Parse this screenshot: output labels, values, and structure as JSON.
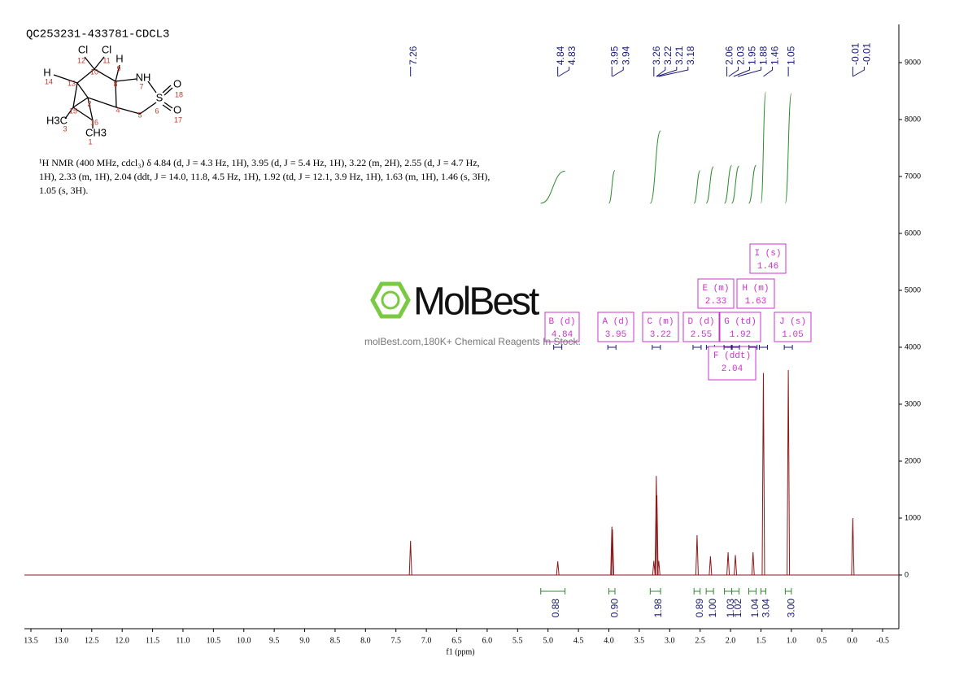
{
  "chart_data": {
    "type": "spectrum",
    "title": "QC253231-433781-CDCL3",
    "x_label": "f1 (ppm)",
    "xlim": [
      13.607,
      -0.767
    ],
    "xticks": [
      13.5,
      {
        "value": 13,
        "label": "13.0"
      },
      12.5,
      {
        "value": 12,
        "label": "12.0"
      },
      11.5,
      {
        "value": 11,
        "label": "11.0"
      },
      10.5,
      {
        "value": 10,
        "label": "10.0"
      },
      9.5,
      {
        "value": 9,
        "label": "9.0"
      },
      8.5,
      {
        "value": 8,
        "label": "8.0"
      },
      7.5,
      {
        "value": 7,
        "label": "7.0"
      },
      6.5,
      {
        "value": 6,
        "label": "6.0"
      },
      5.5,
      {
        "value": 5,
        "label": "5.0"
      },
      4.5,
      {
        "value": 4,
        "label": "4.0"
      },
      3.5,
      {
        "value": 3,
        "label": "3.0"
      },
      2.5,
      {
        "value": 2,
        "label": "2.0"
      },
      1.5,
      {
        "value": 1,
        "label": "1.0"
      },
      0.5,
      {
        "value": 0,
        "label": "0.0"
      },
      -0.5
    ],
    "ylim": [
      -943,
      9671
    ],
    "yticks": [
      0,
      1000,
      2000,
      3000,
      4000,
      5000,
      6000,
      7000,
      8000,
      9000
    ],
    "peaks": {
      "color": "#8b1a1a",
      "x": [
        7.26,
        4.84,
        3.95,
        3.94,
        3.26,
        3.22,
        3.21,
        3.18,
        2.55,
        2.33,
        2.04,
        1.92,
        1.63,
        1.46,
        1.05,
        -0.01
      ],
      "values": [
        600,
        240,
        850,
        800,
        250,
        1740,
        1400,
        250,
        700,
        330,
        400,
        350,
        400,
        3550,
        3600,
        1000
      ]
    },
    "peak_labels": {
      "color": "#1a1a7a",
      "values": [
        7.26,
        4.84,
        4.83,
        3.95,
        3.94,
        3.26,
        3.22,
        3.21,
        3.18,
        2.06,
        2.03,
        1.95,
        1.88,
        1.46,
        1.05,
        -0.01,
        -0.01
      ]
    },
    "multiplets": {
      "color": "#cc33cc",
      "items": [
        {
          "label": "B (d)",
          "value": 4.84
        },
        {
          "label": "A (d)",
          "value": 3.95
        },
        {
          "label": "C (m)",
          "value": 3.22
        },
        {
          "label": "D (d)",
          "value": 2.55
        },
        {
          "label": "E (m)",
          "value": 2.33
        },
        {
          "label": "F (ddt)",
          "value": 2.04
        },
        {
          "label": "G (td)",
          "value": 1.92
        },
        {
          "label": "H (m)",
          "value": 1.63
        },
        {
          "label": "I (s)",
          "value": 1.46
        },
        {
          "label": "J (s)",
          "value": 1.05
        }
      ]
    },
    "integrals": {
      "color": "#2e8b2e",
      "values": [
        0.88,
        0.9,
        1.98,
        0.89,
        1.0,
        1.03,
        1.02,
        1.04,
        3.04,
        3.0
      ],
      "value_labels": [
        "0.88",
        "0.90",
        "1.98",
        "0.89",
        "1.00",
        "1.03",
        "1.02",
        "1.04",
        "3.04",
        "3.00"
      ],
      "from": [
        5.12,
        4.0,
        3.32,
        2.6,
        2.4,
        2.1,
        1.98,
        1.7,
        1.5,
        1.1
      ],
      "to": [
        4.72,
        3.9,
        3.15,
        2.5,
        2.28,
        1.98,
        1.86,
        1.58,
        1.42,
        1.0
      ]
    },
    "description": "¹H NMR (400 MHz, cdcl₃) δ 4.84 (d, J = 4.3 Hz, 1H), 3.95 (d, J = 5.4 Hz, 1H), 3.22 (m, 2H), 2.55 (d, J = 4.7 Hz, 1H), 2.33 (m, 1H), 2.04 (ddt, J = 14.0, 11.8, 4.5 Hz, 1H), 1.92 (td, J = 12.1, 3.9 Hz, 1H), 1.63 (m, 1H), 1.46 (s, 3H), 1.05 (s, 3H).",
    "watermark": {
      "brand": "MolBest",
      "tagline": "molBest.com,180K+ Chemical Reagents In Stock."
    },
    "structure": {
      "atoms": [
        "Cl",
        "Cl",
        "H",
        "H",
        "NH",
        "S",
        "O",
        "O",
        "H3C",
        "CH3"
      ],
      "locants": [
        "12",
        "11",
        "10",
        "9",
        "14",
        "13",
        "8",
        "7",
        "18",
        "2",
        "15",
        "4",
        "6",
        "5",
        "16",
        "17",
        "3",
        "1"
      ]
    }
  }
}
